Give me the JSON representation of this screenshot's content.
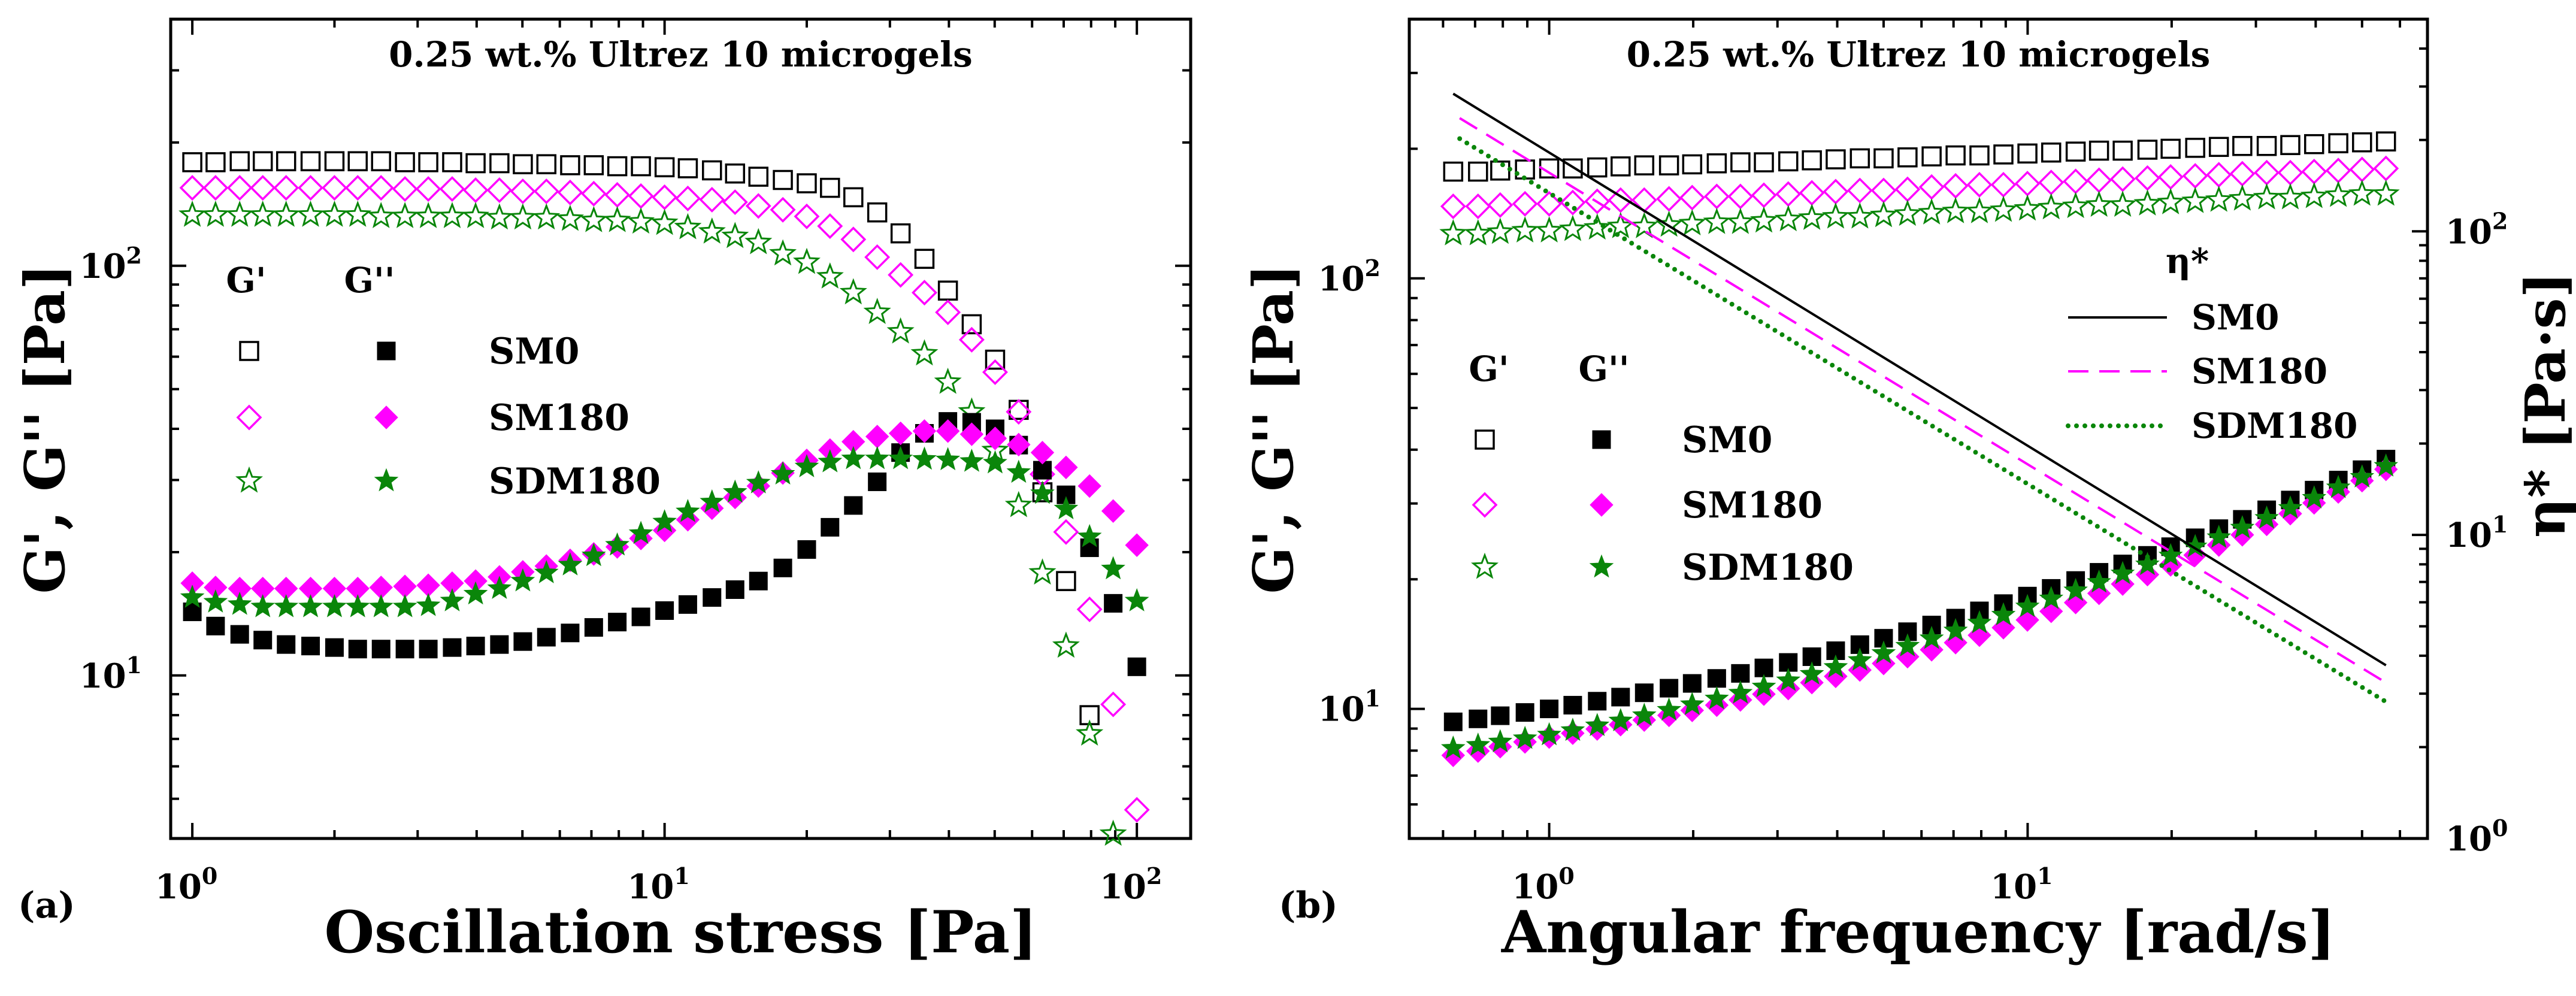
{
  "colors": {
    "SM0": "#000000",
    "SM180": "#ff00ff",
    "SDM180": "#0a860a"
  },
  "chart_data": [
    {
      "panel_label": "(a)",
      "type": "scatter",
      "title": "0.25 wt.% Ultrez 10 microgels",
      "xlabel": "Oscillation stress [Pa]",
      "ylabel": "G', G'' [Pa]",
      "xscale": "log",
      "yscale": "log",
      "xlim": [
        0.9,
        130
      ],
      "ylim": [
        4,
        400
      ],
      "xticks": [
        {
          "value": 1,
          "label": "10^0"
        },
        {
          "value": 10,
          "label": "10^1"
        },
        {
          "value": 100,
          "label": "10^2"
        }
      ],
      "yticks": [
        {
          "value": 10,
          "label": "10^1"
        },
        {
          "value": 100,
          "label": "10^2"
        }
      ],
      "legend": {
        "placement": "center-left",
        "headers": [
          "G'",
          "G''"
        ],
        "entries": [
          "SM0",
          "SM180",
          "SDM180"
        ]
      },
      "x": [
        1,
        1.12,
        1.26,
        1.41,
        1.58,
        1.78,
        2.0,
        2.24,
        2.51,
        2.82,
        3.16,
        3.55,
        3.98,
        4.47,
        5.01,
        5.62,
        6.31,
        7.08,
        7.94,
        8.91,
        10,
        11.2,
        12.6,
        14.1,
        15.8,
        17.8,
        20.0,
        22.4,
        25.1,
        28.2,
        31.6,
        35.5,
        39.8,
        44.7,
        50.1,
        56.2,
        63.1,
        70.8,
        79.4,
        89.1,
        100
      ],
      "series": [
        {
          "name": "SM0",
          "quantity": "G'",
          "marker": "square-open",
          "values": [
            179,
            179,
            180,
            180,
            180,
            180,
            180,
            180,
            180,
            179,
            179,
            179,
            178,
            178,
            177,
            177,
            176,
            176,
            175,
            175,
            174,
            173,
            171,
            168,
            165,
            162,
            159,
            155,
            147,
            135,
            120,
            104,
            87,
            72,
            59,
            44.5,
            28,
            17,
            8,
            null,
            null
          ]
        },
        {
          "name": "SM180",
          "quantity": "G'",
          "marker": "diamond-open",
          "values": [
            155,
            155,
            155,
            155,
            155,
            155,
            155,
            155,
            155,
            154,
            154,
            154,
            153,
            153,
            152,
            152,
            151,
            150,
            149,
            148,
            147,
            146,
            145,
            143,
            140,
            137,
            132,
            125,
            116,
            105,
            95,
            86,
            77,
            66,
            55,
            44,
            31,
            22.4,
            14.5,
            8.5,
            4.7
          ]
        },
        {
          "name": "SDM180",
          "quantity": "G'",
          "marker": "star-open",
          "values": [
            133,
            133,
            133,
            133,
            133,
            133,
            133,
            133,
            132,
            132,
            132,
            132,
            132,
            131,
            131,
            131,
            130,
            129,
            129,
            128,
            127,
            124,
            121,
            118,
            114,
            107,
            102,
            94,
            86,
            77,
            69,
            61,
            52,
            44,
            35.4,
            26,
            17.8,
            11.8,
            7.2,
            4.1,
            null
          ]
        },
        {
          "name": "SM0",
          "quantity": "G''",
          "marker": "square-filled",
          "values": [
            14.3,
            13.2,
            12.6,
            12.2,
            11.9,
            11.8,
            11.7,
            11.6,
            11.6,
            11.6,
            11.6,
            11.7,
            11.8,
            11.9,
            12.1,
            12.4,
            12.7,
            13.1,
            13.5,
            13.9,
            14.4,
            14.9,
            15.5,
            16.2,
            17.0,
            18.3,
            20.3,
            23,
            26,
            29.7,
            35,
            39,
            41.7,
            41.5,
            40,
            36.5,
            31.7,
            27.6,
            20.5,
            15,
            10.5
          ]
        },
        {
          "name": "SM180",
          "quantity": "G''",
          "marker": "diamond-filled",
          "values": [
            16.8,
            16.4,
            16.3,
            16.3,
            16.3,
            16.3,
            16.3,
            16.3,
            16.4,
            16.5,
            16.6,
            16.8,
            17.0,
            17.4,
            17.9,
            18.5,
            19.1,
            19.8,
            20.6,
            21.6,
            22.6,
            24,
            25.6,
            27.2,
            29,
            31.2,
            33.5,
            35.5,
            37.2,
            38.3,
            39,
            39.5,
            39.5,
            38.8,
            37.9,
            36.6,
            35,
            32.2,
            29,
            25.2,
            20.8
          ]
        },
        {
          "name": "SDM180",
          "quantity": "G''",
          "marker": "star-filled",
          "values": [
            15.5,
            15.1,
            14.9,
            14.7,
            14.7,
            14.7,
            14.7,
            14.7,
            14.7,
            14.7,
            14.8,
            15.2,
            15.8,
            16.3,
            17,
            17.8,
            18.6,
            19.6,
            20.8,
            22.2,
            23.7,
            25.1,
            26.5,
            28,
            29.5,
            31,
            32.3,
            33.2,
            33.8,
            33.8,
            33.8,
            33.7,
            33.6,
            33.3,
            33,
            31.3,
            27.8,
            25.5,
            21.8,
            18.2,
            15.2
          ]
        }
      ]
    },
    {
      "panel_label": "(b)",
      "type": "scatter",
      "title": "0.25 wt.% Ultrez 10 microgels",
      "xlabel": "Angular frequency [rad/s]",
      "ylabel": "G', G'' [Pa]",
      "y2label": "η* [Pa·s]",
      "xscale": "log",
      "yscale": "log",
      "y2scale": "log",
      "xlim": [
        0.51,
        68.5
      ],
      "ylim": [
        5,
        400
      ],
      "y2lim": [
        1,
        500
      ],
      "xticks": [
        {
          "value": 1,
          "label": "10^0"
        },
        {
          "value": 10,
          "label": "10^1"
        }
      ],
      "yticks": [
        {
          "value": 10,
          "label": "10^1"
        },
        {
          "value": 100,
          "label": "10^2"
        }
      ],
      "y2ticks": [
        {
          "value": 1,
          "label": "10^0"
        },
        {
          "value": 10,
          "label": "10^1"
        },
        {
          "value": 100,
          "label": "10^2"
        }
      ],
      "legend": {
        "placement": "center-left",
        "headers": [
          "G'",
          "G''"
        ],
        "entries": [
          "SM0",
          "SM180",
          "SDM180"
        ]
      },
      "legend2": {
        "placement": "top-right",
        "header": "η*",
        "entries": [
          "SM0",
          "SM180",
          "SDM180"
        ]
      },
      "x": [
        0.63,
        0.71,
        0.79,
        0.89,
        1.0,
        1.12,
        1.26,
        1.41,
        1.58,
        1.78,
        1.99,
        2.24,
        2.51,
        2.81,
        3.16,
        3.54,
        3.97,
        4.46,
        5.0,
        5.61,
        6.3,
        7.07,
        7.93,
        8.9,
        9.99,
        11.2,
        12.6,
        14.1,
        15.8,
        17.8,
        19.9,
        22.4,
        25.1,
        28.1,
        31.6,
        35.4,
        39.7,
        44.6,
        50.0,
        56.1
      ],
      "series": [
        {
          "name": "SM0",
          "quantity": "G'",
          "marker": "square-open",
          "values": [
            177,
            177,
            178,
            179,
            180,
            180,
            181,
            182,
            183,
            183,
            184,
            185,
            186,
            186,
            187,
            188,
            189,
            190,
            190,
            191,
            192,
            193,
            193,
            194,
            195,
            196,
            197,
            198,
            198,
            199,
            200,
            201,
            202,
            203,
            203,
            204,
            205,
            206,
            207,
            208
          ]
        },
        {
          "name": "SM180",
          "quantity": "G'",
          "marker": "diamond-open",
          "values": [
            147,
            147,
            148,
            149,
            149,
            150,
            151,
            152,
            152,
            153,
            154,
            155,
            155,
            156,
            157,
            158,
            159,
            160,
            160,
            161,
            163,
            164,
            165,
            165,
            166,
            167,
            168,
            169,
            170,
            171,
            172,
            173,
            174,
            175,
            176,
            176,
            177,
            178,
            179,
            180
          ]
        },
        {
          "name": "SDM180",
          "quantity": "G'",
          "marker": "star-open",
          "values": [
            127,
            127,
            128,
            129,
            129,
            130,
            131,
            132,
            132,
            133,
            134,
            135,
            135,
            136,
            137,
            138,
            139,
            139,
            140,
            141,
            142,
            143,
            143,
            144,
            145,
            146,
            147,
            148,
            148,
            149,
            150,
            151,
            152,
            153,
            154,
            154,
            155,
            156,
            157,
            157
          ]
        },
        {
          "name": "SM0",
          "quantity": "G''",
          "marker": "square-filled",
          "values": [
            9.33,
            9.48,
            9.64,
            9.81,
            10.0,
            10.2,
            10.42,
            10.65,
            10.9,
            11.17,
            11.46,
            11.77,
            12.09,
            12.45,
            12.82,
            13.22,
            13.65,
            14.1,
            14.59,
            15.11,
            15.66,
            16.25,
            16.89,
            17.56,
            18.28,
            19.05,
            19.87,
            20.76,
            21.71,
            22.73,
            23.81,
            24.97,
            26.22,
            27.56,
            29.0,
            30.56,
            32.22,
            34.0,
            35.94,
            38.03
          ]
        },
        {
          "name": "SM180",
          "quantity": "G''",
          "marker": "diamond-filled",
          "values": [
            7.8,
            7.98,
            8.17,
            8.38,
            8.6,
            8.78,
            8.98,
            9.19,
            9.42,
            9.66,
            9.92,
            10.2,
            10.49,
            10.82,
            11.15,
            11.51,
            11.9,
            12.31,
            12.75,
            13.22,
            13.72,
            14.25,
            14.83,
            15.44,
            16.09,
            16.85,
            17.66,
            18.55,
            19.5,
            20.51,
            21.6,
            22.76,
            24.02,
            25.37,
            26.83,
            28.41,
            30.09,
            31.91,
            33.89,
            36.01
          ]
        },
        {
          "name": "SDM180",
          "quantity": "G''",
          "marker": "star-filled",
          "values": [
            8.1,
            8.23,
            8.38,
            8.53,
            8.7,
            8.91,
            9.14,
            9.38,
            9.65,
            9.93,
            10.23,
            10.55,
            10.88,
            11.25,
            11.63,
            12.04,
            12.49,
            12.96,
            13.46,
            13.99,
            14.56,
            15.18,
            15.83,
            16.52,
            17.27,
            18.02,
            18.82,
            19.68,
            20.6,
            21.62,
            22.67,
            23.8,
            25.01,
            26.32,
            27.72,
            29.25,
            30.87,
            32.64,
            34.54,
            36.62
          ]
        }
      ],
      "lines": [
        {
          "name": "SM0",
          "quantity": "η*",
          "style": "solid",
          "x": [
            0.63,
            56.1
          ],
          "values": [
            284,
            3.72
          ]
        },
        {
          "name": "SM180",
          "quantity": "η*",
          "style": "dashed",
          "x": [
            0.65,
            56.1
          ],
          "values": [
            236,
            3.26
          ]
        },
        {
          "name": "SDM180",
          "quantity": "η*",
          "style": "dotted",
          "x": [
            0.65,
            56.1
          ],
          "values": [
            202,
            2.82
          ]
        }
      ]
    }
  ]
}
